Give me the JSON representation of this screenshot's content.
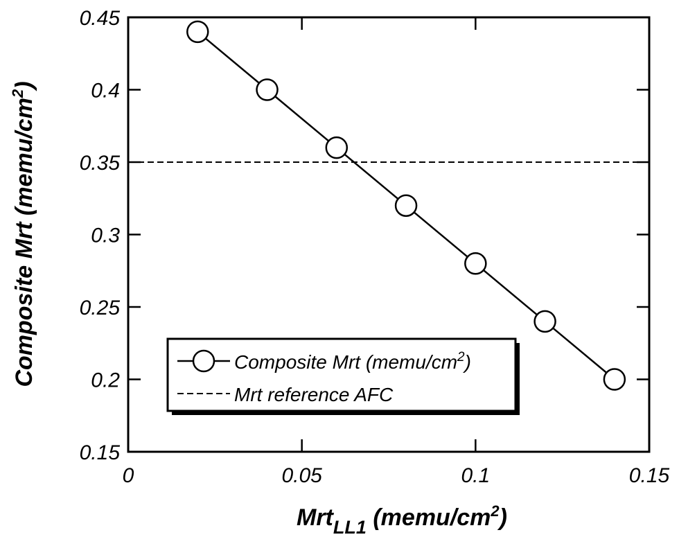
{
  "chart_data": {
    "type": "line",
    "xlabel": {
      "main": "Mrt",
      "sub": "LL1",
      "unit_pre": " (memu/cm",
      "sup": "2",
      "unit_post": ")"
    },
    "ylabel": {
      "text": "Composite Mrt (memu/cm",
      "sup": "2",
      "post": ")"
    },
    "xlim": [
      0,
      0.15
    ],
    "ylim": [
      0.15,
      0.45
    ],
    "xticks": [
      0,
      0.05,
      0.1,
      0.15
    ],
    "xtick_labels": [
      "0",
      "0.05",
      "0.1",
      "0.15"
    ],
    "yticks": [
      0.15,
      0.2,
      0.25,
      0.3,
      0.35,
      0.4,
      0.45
    ],
    "ytick_labels": [
      "0.15",
      "0.2",
      "0.25",
      "0.3",
      "0.35",
      "0.4",
      "0.45"
    ],
    "grid": false,
    "legend_position": "bottom-left",
    "series": [
      {
        "name": "Composite Mrt (memu/cm2)",
        "legend_text": "Composite Mrt (memu/cm",
        "legend_sup": "2",
        "legend_post": ")",
        "style": "solid-open-circle",
        "x": [
          0.02,
          0.04,
          0.06,
          0.08,
          0.1,
          0.12,
          0.14
        ],
        "y": [
          0.44,
          0.4,
          0.36,
          0.32,
          0.28,
          0.24,
          0.2
        ]
      },
      {
        "name": "Mrt reference AFC",
        "legend_text": "Mrt reference AFC",
        "style": "dashed",
        "y_constant": 0.35
      }
    ]
  }
}
